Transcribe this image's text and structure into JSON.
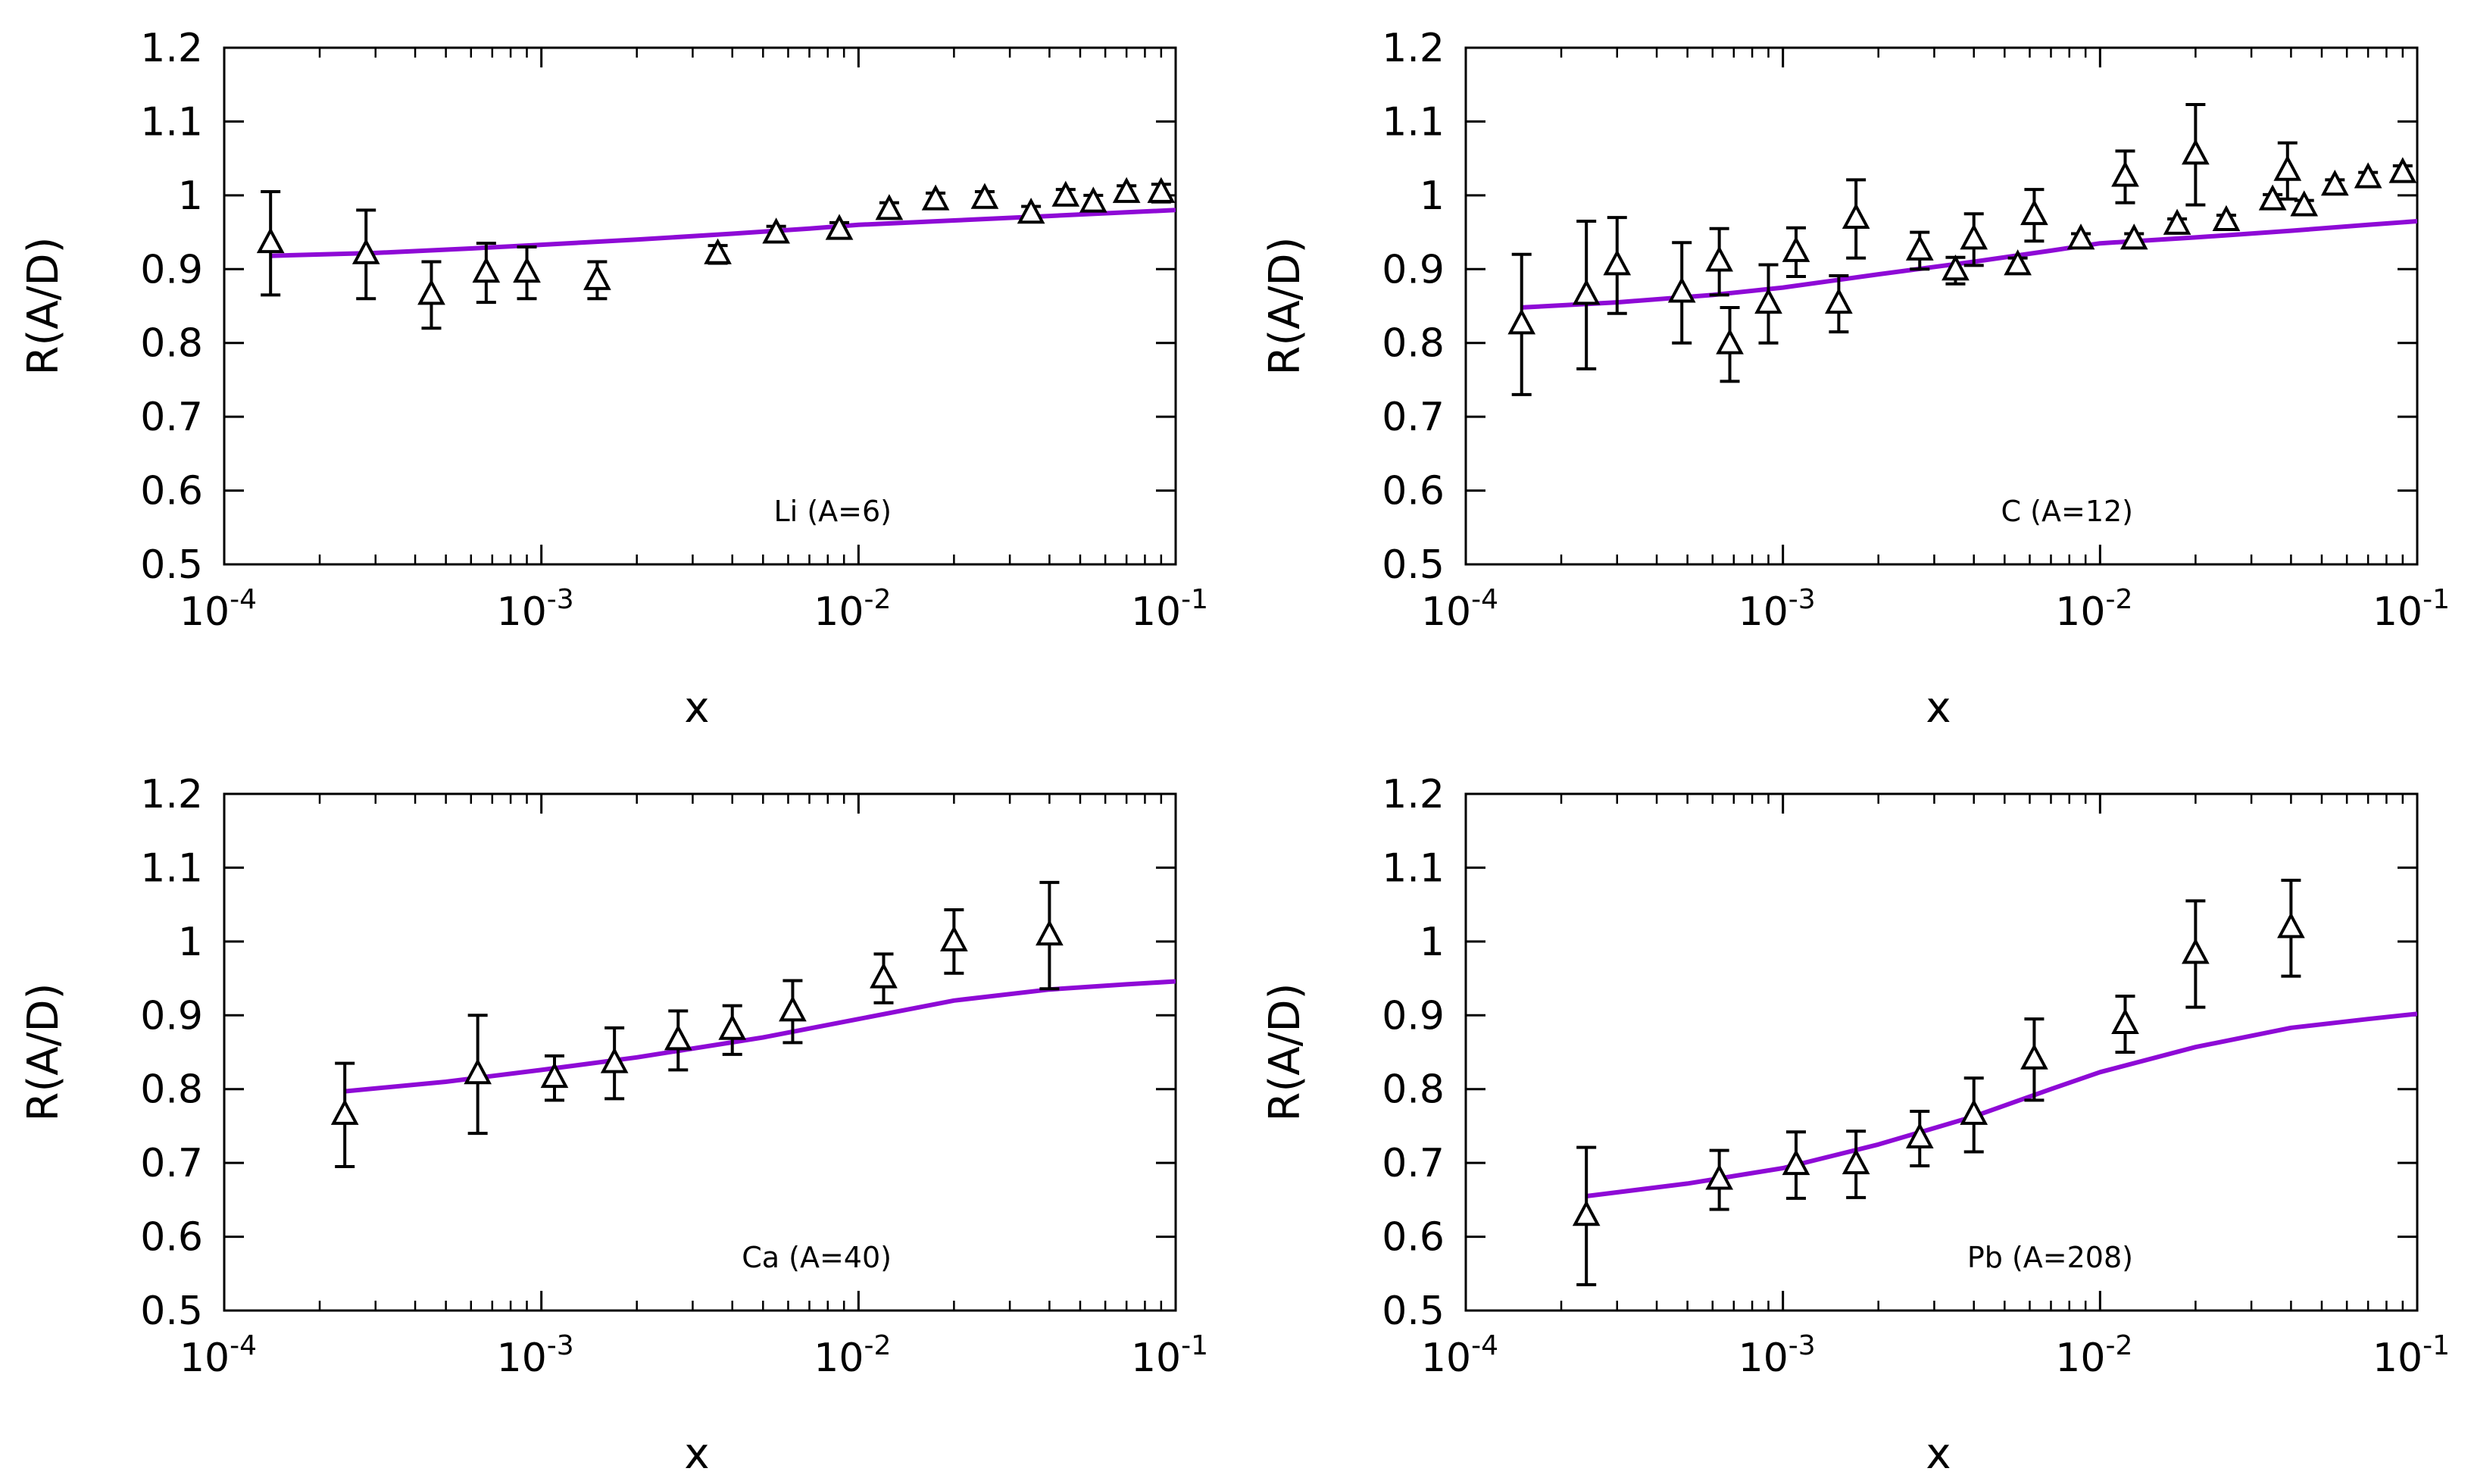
{
  "figure": {
    "colors": {
      "model": "#8e0ad6",
      "data": "#000000",
      "frame": "#000000"
    },
    "data_marker": "open-triangle-up",
    "x_tick_mantissa": "10"
  },
  "chart_data": [
    {
      "type": "scatter",
      "label": "Li (A=6)",
      "xlabel": "x",
      "ylabel": "R(A/D)",
      "xscale": "log",
      "xlim": [
        0.0001,
        0.1
      ],
      "ylim": [
        0.5,
        1.2
      ],
      "x_ticks": [
        0.0001,
        0.001,
        0.01,
        0.1
      ],
      "x_tick_exponents": [
        "-4",
        "-3",
        "-2",
        "-1"
      ],
      "y_ticks": [
        0.5,
        0.6,
        0.7,
        0.8,
        0.9,
        1.0,
        1.1,
        1.2
      ],
      "y_tick_labels": [
        "0.5",
        "0.6",
        "0.7",
        "0.8",
        "0.9",
        "1",
        "1.1",
        "1.2"
      ],
      "series": [
        {
          "name": "data",
          "points": [
            {
              "x": 0.00014,
              "y": 0.935,
              "err": 0.07
            },
            {
              "x": 0.00028,
              "y": 0.92,
              "err": 0.06
            },
            {
              "x": 0.00045,
              "y": 0.865,
              "err": 0.045
            },
            {
              "x": 0.00067,
              "y": 0.895,
              "err": 0.04
            },
            {
              "x": 0.0009,
              "y": 0.895,
              "err": 0.035
            },
            {
              "x": 0.0015,
              "y": 0.885,
              "err": 0.025
            },
            {
              "x": 0.0036,
              "y": 0.92,
              "err": 0.012
            },
            {
              "x": 0.0055,
              "y": 0.948,
              "err": 0.01
            },
            {
              "x": 0.0087,
              "y": 0.953,
              "err": 0.01
            },
            {
              "x": 0.0125,
              "y": 0.98,
              "err": 0.01
            },
            {
              "x": 0.0175,
              "y": 0.993,
              "err": 0.01
            },
            {
              "x": 0.025,
              "y": 0.995,
              "err": 0.01
            },
            {
              "x": 0.035,
              "y": 0.975,
              "err": 0.01
            },
            {
              "x": 0.045,
              "y": 0.998,
              "err": 0.01
            },
            {
              "x": 0.055,
              "y": 0.99,
              "err": 0.01
            },
            {
              "x": 0.07,
              "y": 1.003,
              "err": 0.01
            },
            {
              "x": 0.09,
              "y": 1.003,
              "err": 0.012
            }
          ]
        },
        {
          "name": "model",
          "x": [
            0.00014,
            0.0003,
            0.0006,
            0.001,
            0.002,
            0.004,
            0.007,
            0.01,
            0.02,
            0.04,
            0.07,
            0.1
          ],
          "y": [
            0.918,
            0.922,
            0.928,
            0.933,
            0.94,
            0.948,
            0.955,
            0.96,
            0.966,
            0.972,
            0.977,
            0.98
          ]
        }
      ]
    },
    {
      "type": "scatter",
      "label": "C (A=12)",
      "xlabel": "x",
      "ylabel": "R(A/D)",
      "xscale": "log",
      "xlim": [
        0.0001,
        0.1
      ],
      "ylim": [
        0.5,
        1.2
      ],
      "x_ticks": [
        0.0001,
        0.001,
        0.01,
        0.1
      ],
      "x_tick_exponents": [
        "-4",
        "-3",
        "-2",
        "-1"
      ],
      "y_ticks": [
        0.5,
        0.6,
        0.7,
        0.8,
        0.9,
        1.0,
        1.1,
        1.2
      ],
      "y_tick_labels": [
        "0.5",
        "0.6",
        "0.7",
        "0.8",
        "0.9",
        "1",
        "1.1",
        "1.2"
      ],
      "series": [
        {
          "name": "data",
          "points": [
            {
              "x": 0.00015,
              "y": 0.825,
              "err": 0.095
            },
            {
              "x": 0.00024,
              "y": 0.865,
              "err": 0.1
            },
            {
              "x": 0.0003,
              "y": 0.905,
              "err": 0.065
            },
            {
              "x": 0.00048,
              "y": 0.868,
              "err": 0.068
            },
            {
              "x": 0.00063,
              "y": 0.91,
              "err": 0.045
            },
            {
              "x": 0.00068,
              "y": 0.798,
              "err": 0.05
            },
            {
              "x": 0.0009,
              "y": 0.853,
              "err": 0.053
            },
            {
              "x": 0.0011,
              "y": 0.923,
              "err": 0.033
            },
            {
              "x": 0.0015,
              "y": 0.853,
              "err": 0.038
            },
            {
              "x": 0.0017,
              "y": 0.968,
              "err": 0.053
            },
            {
              "x": 0.0027,
              "y": 0.925,
              "err": 0.025
            },
            {
              "x": 0.0035,
              "y": 0.898,
              "err": 0.018
            },
            {
              "x": 0.004,
              "y": 0.94,
              "err": 0.035
            },
            {
              "x": 0.0055,
              "y": 0.905,
              "err": 0.01
            },
            {
              "x": 0.0062,
              "y": 0.973,
              "err": 0.035
            },
            {
              "x": 0.0087,
              "y": 0.94,
              "err": 0.008
            },
            {
              "x": 0.012,
              "y": 1.025,
              "err": 0.035
            },
            {
              "x": 0.0128,
              "y": 0.94,
              "err": 0.008
            },
            {
              "x": 0.0175,
              "y": 0.96,
              "err": 0.008
            },
            {
              "x": 0.02,
              "y": 1.055,
              "err": 0.068
            },
            {
              "x": 0.025,
              "y": 0.965,
              "err": 0.008
            },
            {
              "x": 0.035,
              "y": 0.993,
              "err": 0.008
            },
            {
              "x": 0.039,
              "y": 1.033,
              "err": 0.038
            },
            {
              "x": 0.044,
              "y": 0.985,
              "err": 0.008
            },
            {
              "x": 0.055,
              "y": 1.013,
              "err": 0.008
            },
            {
              "x": 0.07,
              "y": 1.023,
              "err": 0.008
            },
            {
              "x": 0.09,
              "y": 1.03,
              "err": 0.01
            }
          ]
        },
        {
          "name": "model",
          "x": [
            0.00015,
            0.0003,
            0.0006,
            0.001,
            0.002,
            0.004,
            0.007,
            0.01,
            0.02,
            0.04,
            0.07,
            0.1
          ],
          "y": [
            0.848,
            0.855,
            0.865,
            0.875,
            0.893,
            0.91,
            0.925,
            0.935,
            0.943,
            0.952,
            0.96,
            0.965
          ]
        }
      ]
    },
    {
      "type": "scatter",
      "label": "Ca (A=40)",
      "xlabel": "x",
      "ylabel": "R(A/D)",
      "xscale": "log",
      "xlim": [
        0.0001,
        0.1
      ],
      "ylim": [
        0.5,
        1.2
      ],
      "x_ticks": [
        0.0001,
        0.001,
        0.01,
        0.1
      ],
      "x_tick_exponents": [
        "-4",
        "-3",
        "-2",
        "-1"
      ],
      "y_ticks": [
        0.5,
        0.6,
        0.7,
        0.8,
        0.9,
        1.0,
        1.1,
        1.2
      ],
      "y_tick_labels": [
        "0.5",
        "0.6",
        "0.7",
        "0.8",
        "0.9",
        "1",
        "1.1",
        "1.2"
      ],
      "series": [
        {
          "name": "data",
          "points": [
            {
              "x": 0.00024,
              "y": 0.765,
              "err": 0.07
            },
            {
              "x": 0.00063,
              "y": 0.82,
              "err": 0.08
            },
            {
              "x": 0.0011,
              "y": 0.815,
              "err": 0.03
            },
            {
              "x": 0.0017,
              "y": 0.835,
              "err": 0.048
            },
            {
              "x": 0.0027,
              "y": 0.866,
              "err": 0.04
            },
            {
              "x": 0.004,
              "y": 0.88,
              "err": 0.033
            },
            {
              "x": 0.0062,
              "y": 0.905,
              "err": 0.042
            },
            {
              "x": 0.012,
              "y": 0.95,
              "err": 0.033
            },
            {
              "x": 0.02,
              "y": 1.0,
              "err": 0.043
            },
            {
              "x": 0.04,
              "y": 1.008,
              "err": 0.072
            }
          ]
        },
        {
          "name": "model",
          "x": [
            0.00024,
            0.0005,
            0.001,
            0.002,
            0.005,
            0.01,
            0.02,
            0.04,
            0.07,
            0.1
          ],
          "y": [
            0.797,
            0.81,
            0.826,
            0.843,
            0.87,
            0.895,
            0.92,
            0.935,
            0.942,
            0.946
          ]
        }
      ]
    },
    {
      "type": "scatter",
      "label": "Pb (A=208)",
      "xlabel": "x",
      "ylabel": "R(A/D)",
      "xscale": "log",
      "xlim": [
        0.0001,
        0.1
      ],
      "ylim": [
        0.5,
        1.2
      ],
      "x_ticks": [
        0.0001,
        0.001,
        0.01,
        0.1
      ],
      "x_tick_exponents": [
        "-4",
        "-3",
        "-2",
        "-1"
      ],
      "y_ticks": [
        0.5,
        0.6,
        0.7,
        0.8,
        0.9,
        1.0,
        1.1,
        1.2
      ],
      "y_tick_labels": [
        "0.5",
        "0.6",
        "0.7",
        "0.8",
        "0.9",
        "1",
        "1.1",
        "1.2"
      ],
      "series": [
        {
          "name": "data",
          "points": [
            {
              "x": 0.00024,
              "y": 0.628,
              "err": 0.093
            },
            {
              "x": 0.00063,
              "y": 0.677,
              "err": 0.04
            },
            {
              "x": 0.0011,
              "y": 0.697,
              "err": 0.045
            },
            {
              "x": 0.0017,
              "y": 0.698,
              "err": 0.045
            },
            {
              "x": 0.0027,
              "y": 0.733,
              "err": 0.037
            },
            {
              "x": 0.004,
              "y": 0.765,
              "err": 0.05
            },
            {
              "x": 0.0062,
              "y": 0.84,
              "err": 0.055
            },
            {
              "x": 0.012,
              "y": 0.888,
              "err": 0.038
            },
            {
              "x": 0.02,
              "y": 0.983,
              "err": 0.072
            },
            {
              "x": 0.04,
              "y": 1.018,
              "err": 0.065
            }
          ]
        },
        {
          "name": "model",
          "x": [
            0.00024,
            0.0005,
            0.001,
            0.002,
            0.004,
            0.007,
            0.01,
            0.02,
            0.04,
            0.07,
            0.1
          ],
          "y": [
            0.655,
            0.672,
            0.693,
            0.725,
            0.763,
            0.8,
            0.823,
            0.857,
            0.883,
            0.895,
            0.902
          ]
        }
      ]
    }
  ]
}
